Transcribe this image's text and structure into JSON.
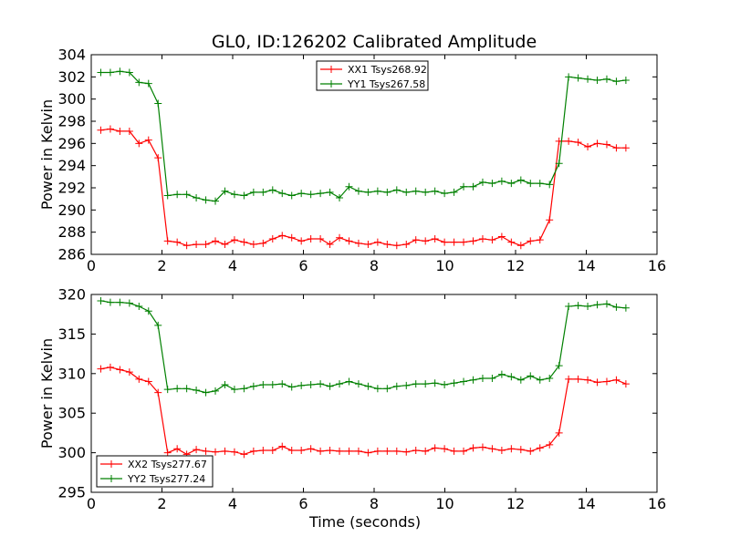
{
  "chart_data": [
    {
      "type": "line",
      "title": "GL0, ID:126202 Calibrated Amplitude",
      "xlabel": "",
      "ylabel": "Power in Kelvin",
      "xlim": [
        0,
        16
      ],
      "ylim": [
        286,
        304
      ],
      "xticks": [
        "0",
        "2",
        "4",
        "6",
        "8",
        "10",
        "12",
        "14",
        "16"
      ],
      "yticks": [
        "286",
        "288",
        "290",
        "292",
        "294",
        "296",
        "298",
        "300",
        "302",
        "304"
      ],
      "legend_position": "top-center",
      "grid": false,
      "x": [
        0.27,
        0.54,
        0.81,
        1.08,
        1.35,
        1.62,
        1.89,
        2.16,
        2.43,
        2.7,
        2.97,
        3.24,
        3.51,
        3.78,
        4.05,
        4.32,
        4.59,
        4.86,
        5.13,
        5.4,
        5.67,
        5.94,
        6.21,
        6.48,
        6.75,
        7.02,
        7.29,
        7.56,
        7.83,
        8.1,
        8.37,
        8.64,
        8.91,
        9.18,
        9.45,
        9.72,
        9.99,
        10.26,
        10.53,
        10.8,
        11.07,
        11.34,
        11.61,
        11.88,
        12.15,
        12.42,
        12.69,
        12.96,
        13.23,
        13.5,
        13.77,
        14.04,
        14.31,
        14.58,
        14.85,
        15.12
      ],
      "series": [
        {
          "name": "XX1 Tsys268.92",
          "color": "#ff0000",
          "values": [
            297.2,
            297.3,
            297.1,
            297.1,
            296.0,
            296.3,
            294.7,
            287.2,
            287.1,
            286.8,
            286.9,
            286.9,
            287.2,
            286.9,
            287.3,
            287.1,
            286.9,
            287.0,
            287.4,
            287.7,
            287.5,
            287.2,
            287.4,
            287.4,
            286.9,
            287.5,
            287.2,
            287.0,
            286.9,
            287.1,
            286.9,
            286.8,
            286.9,
            287.3,
            287.2,
            287.4,
            287.1,
            287.1,
            287.1,
            287.2,
            287.4,
            287.3,
            287.6,
            287.1,
            286.8,
            287.2,
            287.3,
            289.1,
            296.2,
            296.2,
            296.1,
            295.7,
            296.0,
            295.9,
            295.6,
            295.6
          ]
        },
        {
          "name": "YY1 Tsys267.58",
          "color": "#008000",
          "values": [
            302.4,
            302.4,
            302.5,
            302.4,
            301.5,
            301.4,
            299.6,
            291.3,
            291.4,
            291.4,
            291.1,
            290.9,
            290.8,
            291.7,
            291.4,
            291.3,
            291.6,
            291.6,
            291.8,
            291.5,
            291.3,
            291.5,
            291.4,
            291.5,
            291.6,
            291.1,
            292.1,
            291.7,
            291.6,
            291.7,
            291.6,
            291.8,
            291.6,
            291.7,
            291.6,
            291.7,
            291.5,
            291.6,
            292.1,
            292.1,
            292.5,
            292.4,
            292.6,
            292.4,
            292.7,
            292.4,
            292.4,
            292.3,
            294.2,
            302.0,
            301.9,
            301.8,
            301.7,
            301.8,
            301.6,
            301.7
          ]
        }
      ]
    },
    {
      "type": "line",
      "title": "",
      "xlabel": "Time (seconds)",
      "ylabel": "Power in Kelvin",
      "xlim": [
        0,
        16
      ],
      "ylim": [
        295,
        320
      ],
      "xticks": [
        "0",
        "2",
        "4",
        "6",
        "8",
        "10",
        "12",
        "14",
        "16"
      ],
      "yticks": [
        "295",
        "300",
        "305",
        "310",
        "315",
        "320"
      ],
      "legend_position": "bottom-left",
      "grid": false,
      "x": [
        0.27,
        0.54,
        0.81,
        1.08,
        1.35,
        1.62,
        1.89,
        2.16,
        2.43,
        2.7,
        2.97,
        3.24,
        3.51,
        3.78,
        4.05,
        4.32,
        4.59,
        4.86,
        5.13,
        5.4,
        5.67,
        5.94,
        6.21,
        6.48,
        6.75,
        7.02,
        7.29,
        7.56,
        7.83,
        8.1,
        8.37,
        8.64,
        8.91,
        9.18,
        9.45,
        9.72,
        9.99,
        10.26,
        10.53,
        10.8,
        11.07,
        11.34,
        11.61,
        11.88,
        12.15,
        12.42,
        12.69,
        12.96,
        13.23,
        13.5,
        13.77,
        14.04,
        14.31,
        14.58,
        14.85,
        15.12
      ],
      "series": [
        {
          "name": "XX2 Tsys277.67",
          "color": "#ff0000",
          "values": [
            310.6,
            310.8,
            310.5,
            310.2,
            309.3,
            309.0,
            307.6,
            300.0,
            300.5,
            299.8,
            300.4,
            300.2,
            300.1,
            300.2,
            300.1,
            299.8,
            300.2,
            300.3,
            300.3,
            300.8,
            300.3,
            300.3,
            300.5,
            300.2,
            300.3,
            300.2,
            300.2,
            300.2,
            300.0,
            300.2,
            300.2,
            300.2,
            300.1,
            300.3,
            300.2,
            300.6,
            300.5,
            300.2,
            300.2,
            300.6,
            300.7,
            300.5,
            300.3,
            300.5,
            300.4,
            300.2,
            300.6,
            301.0,
            302.5,
            309.3,
            309.3,
            309.2,
            308.9,
            309.0,
            309.2,
            308.7
          ]
        },
        {
          "name": "YY2 Tsys277.24",
          "color": "#008000",
          "values": [
            319.2,
            319.0,
            319.0,
            318.9,
            318.5,
            317.9,
            316.1,
            308.0,
            308.1,
            308.1,
            307.9,
            307.6,
            307.8,
            308.6,
            308.0,
            308.1,
            308.4,
            308.6,
            308.6,
            308.7,
            308.3,
            308.5,
            308.6,
            308.7,
            308.4,
            308.7,
            309.0,
            308.7,
            308.4,
            308.1,
            308.1,
            308.4,
            308.5,
            308.7,
            308.7,
            308.8,
            308.6,
            308.8,
            309.0,
            309.2,
            309.4,
            309.4,
            309.9,
            309.6,
            309.2,
            309.7,
            309.2,
            309.4,
            311.0,
            318.5,
            318.6,
            318.5,
            318.7,
            318.8,
            318.4,
            318.3
          ]
        }
      ]
    }
  ]
}
